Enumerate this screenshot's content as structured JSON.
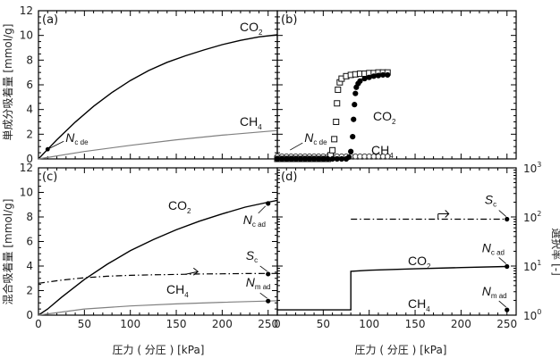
{
  "chart_data": [
    {
      "panel": "(a)",
      "type": "line",
      "xlim": [
        0,
        260
      ],
      "ylim": [
        0,
        12
      ],
      "yticks": [
        "0",
        "2",
        "4",
        "6",
        "8",
        "10",
        "12"
      ],
      "series": [
        {
          "name": "CO2",
          "color": "#000000",
          "x": [
            0,
            10,
            20,
            40,
            60,
            80,
            100,
            120,
            140,
            160,
            180,
            200,
            220,
            240,
            260
          ],
          "y": [
            0,
            0.78,
            1.55,
            2.98,
            4.26,
            5.38,
            6.35,
            7.16,
            7.82,
            8.35,
            8.82,
            9.25,
            9.6,
            9.88,
            10.05
          ]
        },
        {
          "name": "CH4",
          "color": "#808080",
          "x": [
            0,
            50,
            100,
            150,
            200,
            260
          ],
          "y": [
            0,
            0.6,
            1.1,
            1.55,
            1.92,
            2.3
          ]
        }
      ],
      "annotations": [
        {
          "label_main": "N",
          "label_sub": "c_de",
          "x": 10,
          "y": 0.78
        }
      ]
    },
    {
      "panel": "(b)",
      "type": "scatter",
      "xlim": [
        0,
        260
      ],
      "ylim": [
        0,
        12
      ],
      "series": [
        {
          "name": "CO2",
          "marker": "open-square",
          "x": [
            0,
            5,
            10,
            15,
            20,
            25,
            30,
            35,
            40,
            45,
            50,
            55,
            58,
            60,
            62,
            64,
            65,
            66,
            68,
            70,
            75,
            80,
            85,
            90,
            95,
            100,
            105,
            110,
            115,
            120
          ],
          "y": [
            0,
            0,
            0,
            0,
            0,
            0,
            0,
            0,
            0,
            0,
            0,
            0,
            0.3,
            0.7,
            1.6,
            3.0,
            4.5,
            5.6,
            6.2,
            6.5,
            6.7,
            6.8,
            6.85,
            6.9,
            6.9,
            6.95,
            6.95,
            7.0,
            7.0,
            7.0
          ]
        },
        {
          "name": "CH4",
          "marker": "filled-circle",
          "x": [
            0,
            5,
            10,
            15,
            20,
            25,
            30,
            35,
            40,
            45,
            50,
            55,
            60,
            65,
            70,
            75,
            78,
            80,
            82,
            83,
            84,
            85,
            86,
            88,
            90,
            95,
            100,
            105,
            110,
            115,
            120
          ],
          "y": [
            0,
            0,
            0,
            0,
            0,
            0,
            0,
            0,
            0,
            0,
            0,
            0,
            0,
            0,
            0,
            0,
            0.15,
            0.6,
            1.8,
            3.2,
            4.4,
            5.3,
            5.8,
            6.1,
            6.3,
            6.5,
            6.6,
            6.7,
            6.75,
            6.8,
            6.8
          ]
        },
        {
          "name": "CH4-baseline",
          "marker": "open-circle",
          "x": [
            0,
            5,
            10,
            15,
            20,
            25,
            30,
            35,
            40,
            45,
            50,
            55,
            60,
            65,
            70,
            75,
            80,
            85,
            90,
            95,
            100,
            105,
            110,
            115,
            120
          ],
          "y": [
            0.2,
            0.2,
            0.2,
            0.2,
            0.2,
            0.2,
            0.2,
            0.2,
            0.2,
            0.2,
            0.2,
            0.2,
            0.2,
            0.2,
            0.2,
            0.2,
            0.2,
            0.2,
            0.2,
            0.2,
            0.2,
            0.2,
            0.2,
            0.2,
            0.2
          ]
        }
      ],
      "annotations": [
        {
          "label_main": "N",
          "label_sub": "c_de",
          "x": 10,
          "y": 0.5
        }
      ]
    },
    {
      "panel": "(c)",
      "type": "line",
      "xlim": [
        0,
        260
      ],
      "ylim": [
        0,
        12
      ],
      "yticks": [
        "0",
        "2",
        "4",
        "6",
        "8",
        "10",
        "12"
      ],
      "xticks": [
        "0",
        "50",
        "100",
        "150",
        "200",
        "250"
      ],
      "series": [
        {
          "name": "CO2",
          "color": "#000000",
          "x": [
            0,
            10,
            25,
            50,
            75,
            100,
            125,
            150,
            175,
            200,
            225,
            250,
            260
          ],
          "y": [
            0,
            0.5,
            1.45,
            2.9,
            4.15,
            5.25,
            6.15,
            6.95,
            7.65,
            8.25,
            8.8,
            9.2,
            9.35
          ]
        },
        {
          "name": "CH4",
          "color": "#808080",
          "x": [
            0,
            50,
            100,
            150,
            200,
            250,
            260
          ],
          "y": [
            0,
            0.5,
            0.75,
            0.92,
            1.05,
            1.15,
            1.18
          ]
        },
        {
          "name": "Sc",
          "color": "#000000",
          "dash": "dashdot",
          "x": [
            0,
            25,
            50,
            75,
            100,
            125,
            150,
            175,
            200,
            225,
            250,
            260
          ],
          "y": [
            2.6,
            2.85,
            3.05,
            3.17,
            3.24,
            3.29,
            3.32,
            3.35,
            3.37,
            3.39,
            3.4,
            3.4
          ]
        }
      ],
      "markers": [
        {
          "x": 250,
          "y": 9.1
        },
        {
          "x": 250,
          "y": 3.35
        },
        {
          "x": 250,
          "y": 1.15
        }
      ],
      "annotations": [
        {
          "label_main": "N",
          "label_sub": "c_ad",
          "x": 250,
          "y": 9.1
        },
        {
          "label_main": "S",
          "label_sub": "c",
          "x": 250,
          "y": 3.35
        },
        {
          "label_main": "N",
          "label_sub": "m_ad",
          "x": 250,
          "y": 1.15
        }
      ]
    },
    {
      "panel": "(d)",
      "type": "line",
      "xlim": [
        0,
        260
      ],
      "ylim_log": [
        1,
        1000
      ],
      "yticks_right": [
        {
          "base": "10",
          "exp": "0"
        },
        {
          "base": "10",
          "exp": "1"
        },
        {
          "base": "10",
          "exp": "2"
        },
        {
          "base": "10",
          "exp": "3"
        }
      ],
      "xticks": [
        "0",
        "50",
        "100",
        "150",
        "200",
        "250"
      ],
      "series": [
        {
          "name": "CO2",
          "color": "#000000",
          "x": [
            0,
            80,
            80,
            100,
            150,
            200,
            250
          ],
          "y": [
            1.28,
            1.28,
            7.8,
            8.2,
            8.8,
            9.3,
            9.8
          ]
        },
        {
          "name": "CH4",
          "color": "#000000",
          "x": [
            0,
            80
          ],
          "y": [
            1.28,
            1.28
          ]
        },
        {
          "name": "Sc",
          "color": "#000000",
          "dash": "dashdot",
          "x": [
            80,
            120,
            160,
            200,
            250
          ],
          "y": [
            90,
            90,
            90,
            90,
            90
          ]
        }
      ],
      "markers": [
        {
          "x": 250,
          "y": 9.8
        },
        {
          "x": 250,
          "y": 90
        },
        {
          "x": 250,
          "y": 1.28
        }
      ],
      "annotations": [
        {
          "label_main": "N",
          "label_sub": "c_ad",
          "x": 250,
          "y": 9.8
        },
        {
          "label_main": "S",
          "label_sub": "c",
          "x": 250,
          "y": 90
        },
        {
          "label_main": "N",
          "label_sub": "m_ad",
          "x": 250,
          "y": 1.28
        }
      ]
    }
  ],
  "labels": {
    "ylabel_top": "単成分吸着量 [mmol/g]",
    "ylabel_bottom": "混合吸着量 [mmol/g]",
    "ylabel_right": "選択率 [-]",
    "xlabel_left": "圧力 ( 分圧 ) [kPa]",
    "xlabel_right": "圧力 ( 分圧 ) [kPa]",
    "co2_main": "CO",
    "co2_sub": "2",
    "ch4_main": "CH",
    "ch4_sub": "4"
  }
}
